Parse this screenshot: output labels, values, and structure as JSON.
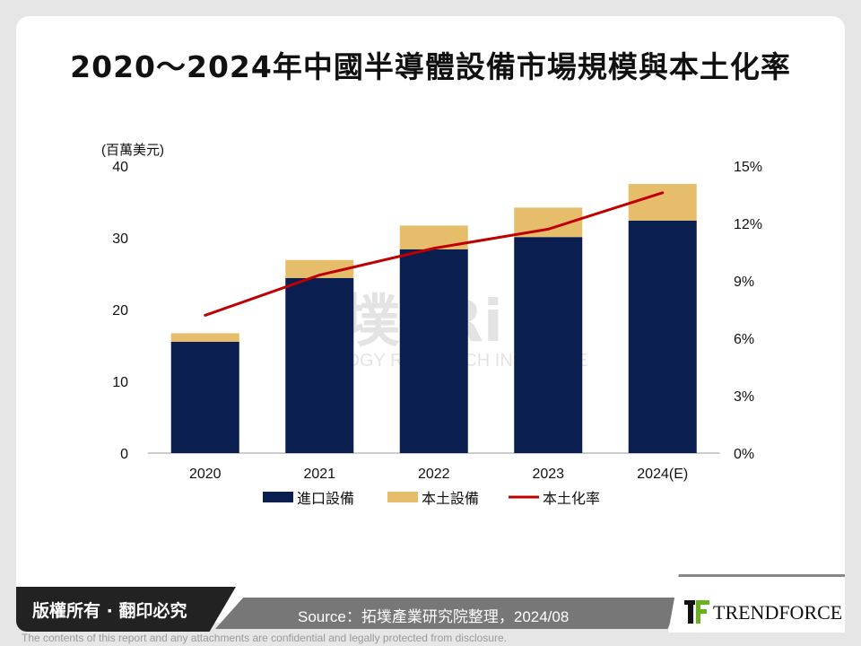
{
  "title": "2020～2024年中國半導體設備市場規模與本土化率",
  "watermark": "拓墣TRi TOPOLOGY RESEARCH INSTITUTE",
  "footer": {
    "copyright": "版權所有 · 翻印必究",
    "source": "Source：拓墣產業研究院整理，2024/08",
    "brand": "TRENDFORCE",
    "disclaimer": "The contents of this report and any attachments are confidential and legally protected from disclosure."
  },
  "chart_data": {
    "type": "bar",
    "stacked": true,
    "title": "2020～2024年中國半導體設備市場規模與本土化率",
    "ylabel": "(百萬美元)",
    "categories": [
      "2020",
      "2021",
      "2022",
      "2023",
      "2024(E)"
    ],
    "ylim": [
      0,
      40
    ],
    "yticks": [
      "0",
      "10",
      "20",
      "30",
      "40"
    ],
    "y2lim": [
      0,
      15
    ],
    "y2ticks": [
      "0%",
      "3%",
      "6%",
      "9%",
      "12%",
      "15%"
    ],
    "grid": false,
    "legend_position": "bottom",
    "series": [
      {
        "name": "進口設備",
        "type": "bar",
        "color": "#0a1f4f",
        "values": [
          15.5,
          24.4,
          28.4,
          30.1,
          32.4
        ]
      },
      {
        "name": "本土設備",
        "type": "bar",
        "color": "#e6bd6a",
        "values": [
          1.2,
          2.5,
          3.3,
          4.1,
          5.1
        ]
      },
      {
        "name": "本土化率",
        "type": "line",
        "axis": "right",
        "unit": "%",
        "color": "#c00000",
        "values": [
          7.2,
          9.3,
          10.7,
          11.7,
          13.6
        ]
      }
    ]
  }
}
